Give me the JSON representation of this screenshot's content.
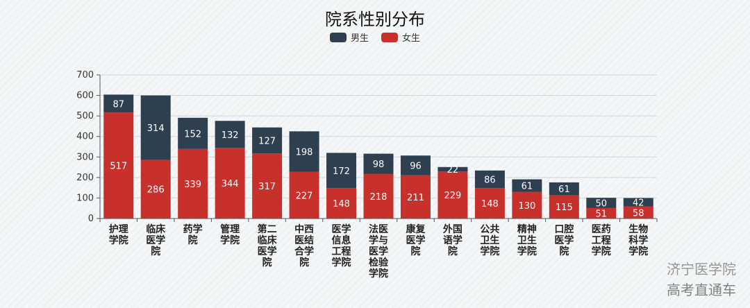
{
  "chart_data": {
    "type": "bar",
    "stacked": true,
    "title": "院系性别分布",
    "categories": [
      "护理学院",
      "临床医学院",
      "药学院",
      "管理学院",
      "第二临床医学院",
      "中西医结合学院",
      "医学信息工程学院",
      "法医学与医学检验学院",
      "康复医学院",
      "外国语学院",
      "公共卫生学院",
      "精神卫生学院",
      "口腔医学院",
      "医药工程学院",
      "生物科学学院"
    ],
    "series": [
      {
        "name": "女生",
        "color": "#c8302c",
        "values": [
          517,
          286,
          339,
          344,
          317,
          227,
          148,
          218,
          211,
          229,
          148,
          130,
          115,
          51,
          58
        ]
      },
      {
        "name": "男生",
        "color": "#2e3f4f",
        "values": [
          87,
          314,
          152,
          132,
          127,
          198,
          172,
          98,
          96,
          22,
          86,
          61,
          61,
          50,
          42
        ]
      }
    ],
    "ylim": [
      0,
      700
    ],
    "yticks": [
      0,
      100,
      200,
      300,
      400,
      500,
      600,
      700
    ],
    "grid": true,
    "legend": "top-center",
    "legend_order": [
      "男生",
      "女生"
    ]
  },
  "watermark": {
    "line1": "济宁医学院",
    "line2": "高考直通车"
  }
}
